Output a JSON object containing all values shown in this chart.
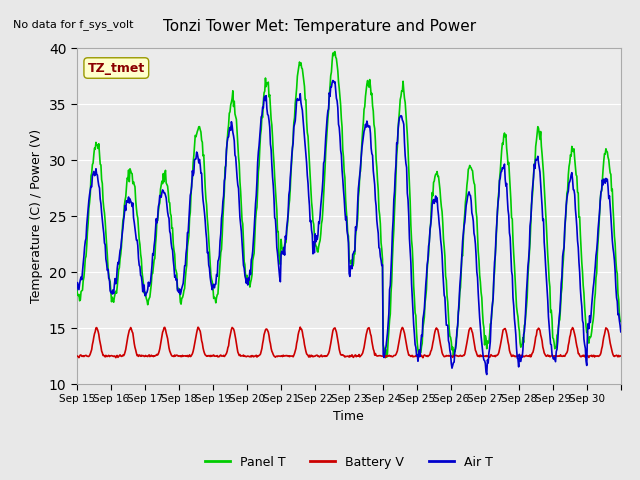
{
  "title": "Tonzi Tower Met: Temperature and Power",
  "top_left_text": "No data for f_sys_volt",
  "xlabel": "Time",
  "ylabel": "Temperature (C) / Power (V)",
  "ylim": [
    10,
    40
  ],
  "yticks": [
    10,
    15,
    20,
    25,
    30,
    35,
    40
  ],
  "xtick_labels": [
    "Sep 15",
    "Sep 16",
    "Sep 17",
    "Sep 18",
    "Sep 19",
    "Sep 20",
    "Sep 21",
    "Sep 22",
    "Sep 23",
    "Sep 24",
    "Sep 25",
    "Sep 26",
    "Sep 27",
    "Sep 28",
    "Sep 29",
    "Sep 30"
  ],
  "annotation_text": "TZ_tmet",
  "annotation_color": "#8B0000",
  "annotation_bg": "#FFFFCC",
  "bg_color": "#E8E8E8",
  "plot_bg": "#F0F0F0",
  "panel_T_color": "#00CC00",
  "battery_V_color": "#CC0000",
  "air_T_color": "#0000CC",
  "legend_labels": [
    "Panel T",
    "Battery V",
    "Air T"
  ],
  "n_days": 16,
  "pts_per_day": 48,
  "panel_T_peaks": [
    31.5,
    29.0,
    28.5,
    33.0,
    35.5,
    37.0,
    38.5,
    39.5,
    37.0,
    36.5,
    29.0,
    29.5,
    32.0,
    32.5,
    31.0,
    31.0
  ],
  "panel_T_troughs": [
    17.5,
    17.5,
    17.5,
    17.5,
    17.5,
    19.0,
    22.0,
    22.0,
    20.5,
    12.5,
    13.0,
    13.0,
    13.5,
    13.5,
    13.5,
    14.0
  ],
  "air_T_peaks": [
    29.0,
    26.5,
    27.0,
    30.5,
    33.0,
    35.5,
    35.5,
    37.0,
    33.5,
    34.0,
    26.5,
    27.0,
    29.5,
    30.0,
    28.5,
    28.5
  ],
  "air_T_troughs": [
    18.5,
    18.0,
    18.0,
    18.0,
    18.5,
    19.0,
    21.5,
    23.0,
    20.0,
    12.5,
    12.5,
    11.5,
    11.5,
    12.0,
    12.0,
    15.0
  ],
  "battery_base": 12.5,
  "battery_peak": 15.0
}
